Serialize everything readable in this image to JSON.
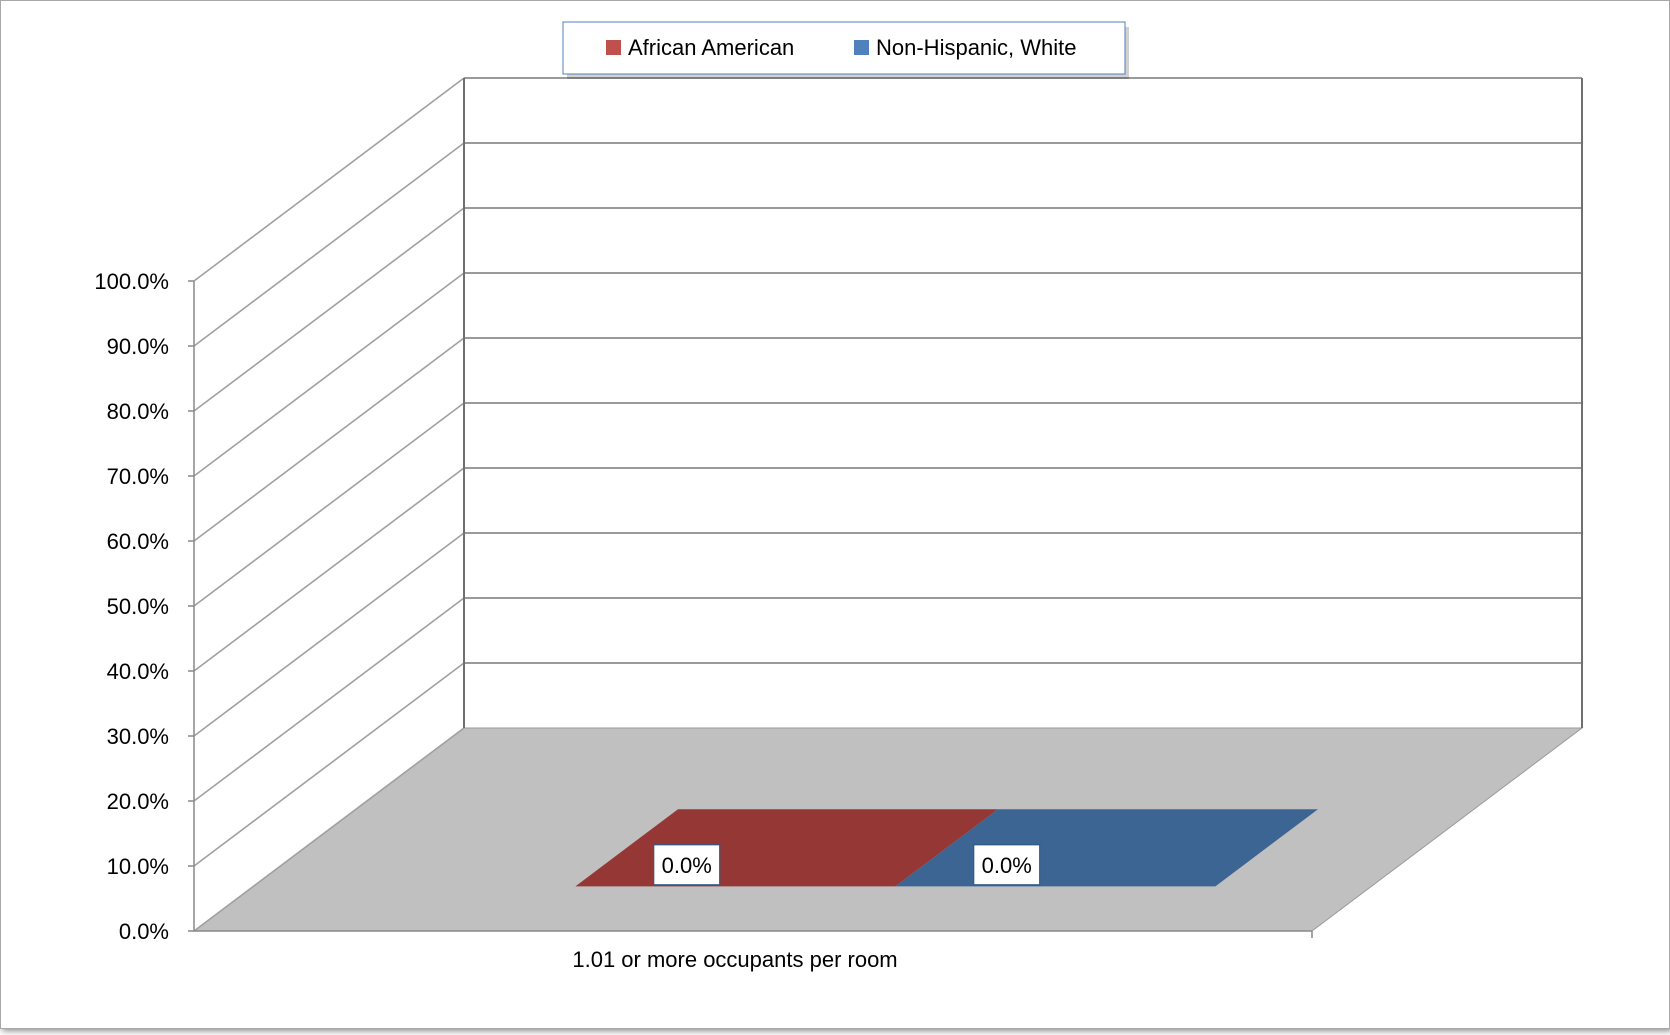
{
  "chart_data": {
    "type": "bar",
    "categories": [
      "1.01 or more occupants per room"
    ],
    "series": [
      {
        "name": "African American",
        "values": [
          0.0
        ],
        "labels": [
          "0.0%"
        ],
        "color": "#953735"
      },
      {
        "name": "Non-Hispanic, White",
        "values": [
          0.0
        ],
        "labels": [
          "0.0%"
        ],
        "color": "#3d6594"
      }
    ],
    "legend_colors": [
      "#c0504d",
      "#4f81bd"
    ],
    "ylim": [
      0,
      100
    ],
    "yticks": [
      "0.0%",
      "10.0%",
      "20.0%",
      "30.0%",
      "40.0%",
      "50.0%",
      "60.0%",
      "70.0%",
      "80.0%",
      "90.0%",
      "100.0%"
    ],
    "grid": true,
    "legend_position": "top",
    "style": "3d-column",
    "floor_color": "#c0c0c0"
  }
}
